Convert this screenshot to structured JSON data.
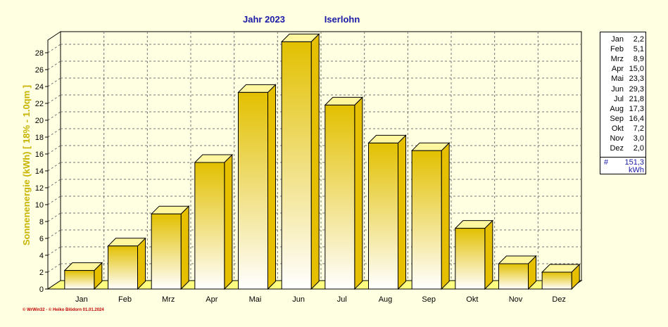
{
  "header": {
    "year_label": "Jahr  2023",
    "location": "Iserlohn"
  },
  "footer": {
    "credit": "© WrWin32  -  © Heiko Blödorn  01.01.2024"
  },
  "colors": {
    "background": "#ffffe1",
    "bar_top": "#e2c000",
    "bar_bottom": "#ffffff",
    "title": "#1a1aa6",
    "axis_label": "#c8b400"
  },
  "chart_data": {
    "type": "bar",
    "title": "Jahr  2023",
    "subtitle": "Iserlohn",
    "ylabel": "Sonnenenergie  (kWh)     [ 18% - 1.0qm ]",
    "xlabel": "",
    "categories": [
      "Jan",
      "Feb",
      "Mrz",
      "Apr",
      "Mai",
      "Jun",
      "Jul",
      "Aug",
      "Sep",
      "Okt",
      "Nov",
      "Dez"
    ],
    "values": [
      2.2,
      5.1,
      8.9,
      15.0,
      23.3,
      29.3,
      21.8,
      17.3,
      16.4,
      7.2,
      3.0,
      2.0
    ],
    "ylim": [
      0,
      29.5
    ],
    "yticks": [
      0,
      2,
      4,
      6,
      8,
      10,
      12,
      14,
      16,
      18,
      20,
      22,
      24,
      26,
      28
    ],
    "grid": true,
    "legend": {
      "placement": "right",
      "rows": [
        {
          "month": "Jan",
          "value": "2,2"
        },
        {
          "month": "Feb",
          "value": "5,1"
        },
        {
          "month": "Mrz",
          "value": "8,9"
        },
        {
          "month": "Apr",
          "value": "15,0"
        },
        {
          "month": "Mai",
          "value": "23,3"
        },
        {
          "month": "Jun",
          "value": "29,3"
        },
        {
          "month": "Jul",
          "value": "21,8"
        },
        {
          "month": "Aug",
          "value": "17,3"
        },
        {
          "month": "Sep",
          "value": "16,4"
        },
        {
          "month": "Okt",
          "value": "7,2"
        },
        {
          "month": "Nov",
          "value": "3,0"
        },
        {
          "month": "Dez",
          "value": "2,0"
        }
      ],
      "total_symbol": "#",
      "total": "151,3",
      "unit": "kWh"
    }
  }
}
